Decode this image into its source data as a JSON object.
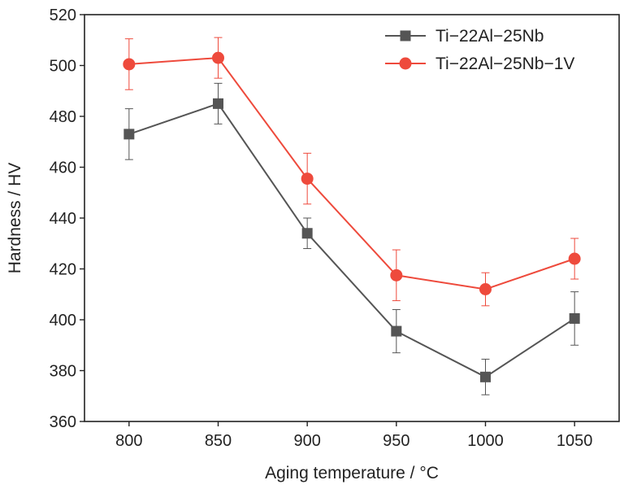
{
  "chart_data": {
    "type": "line",
    "x": [
      800,
      850,
      900,
      950,
      1000,
      1050
    ],
    "xlabel": "Aging temperature / °C",
    "ylabel": "Hardness / HV",
    "xlim": [
      775,
      1075
    ],
    "ylim": [
      360,
      520
    ],
    "xticks": [
      800,
      850,
      900,
      950,
      1000,
      1050
    ],
    "yticks": [
      360,
      380,
      400,
      420,
      440,
      460,
      480,
      500,
      520
    ],
    "grid": false,
    "legend_position": "top-right",
    "series": [
      {
        "name": "Ti−22Al−25Nb",
        "color": "#555555",
        "marker": "square",
        "values": [
          473,
          485,
          434,
          395.5,
          377.5,
          400.5
        ],
        "error": [
          10,
          8,
          6,
          8.5,
          7,
          10.5
        ]
      },
      {
        "name": "Ti−22Al−25Nb−1V",
        "color": "#ee4a3c",
        "marker": "circle",
        "values": [
          500.5,
          503,
          455.5,
          417.5,
          412,
          424
        ],
        "error": [
          10,
          8,
          10,
          10,
          6.5,
          8
        ]
      }
    ]
  }
}
